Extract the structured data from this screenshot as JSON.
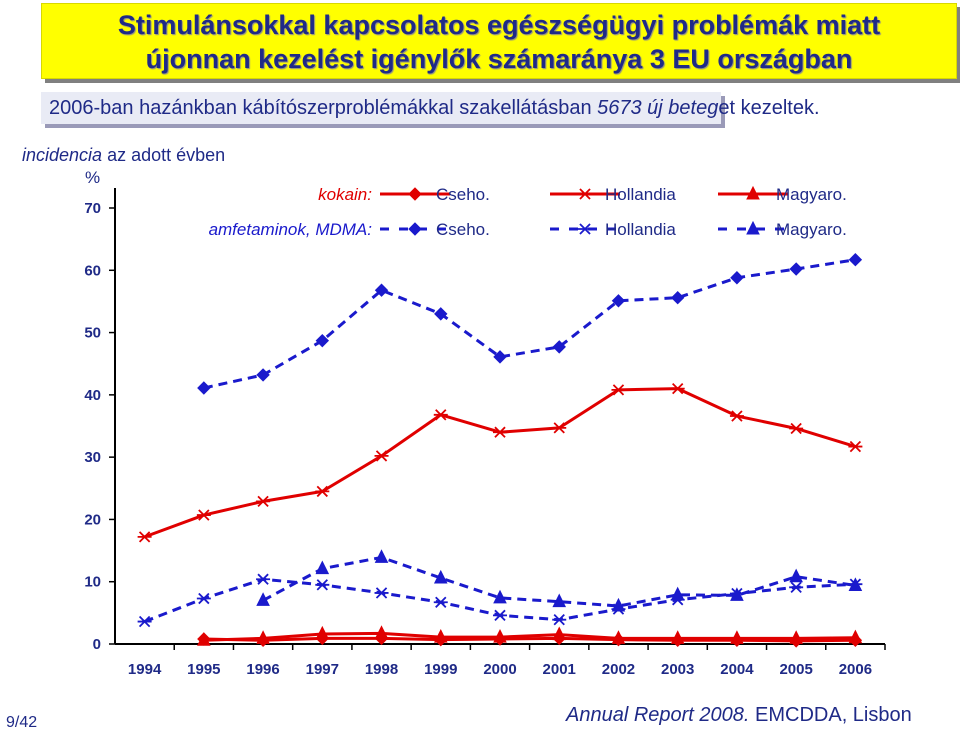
{
  "title_line1": "Stimulánsokkal kapcsolatos egészségügyi problémák miatt",
  "title_line2": "újonnan kezelést igénylők számaránya 3 EU országban",
  "subtitle_pre": "2006-ban hazánkban kábítószerproblémákkal szakellátásban ",
  "subtitle_italic": "5673 új beteg",
  "subtitle_post": "et kezeltek.",
  "incidence_italic": "incidencia",
  "incidence_rest": " az adott évben",
  "ylabel": "%",
  "page_number": "9/42",
  "source_italic": "Annual Report 2008.",
  "source_rest": " EMCDDA, Lisbon",
  "colors": {
    "red": "#e00000",
    "blue": "#1a1acc",
    "text": "#1f2a87"
  },
  "chart_data": {
    "type": "line",
    "x": [
      1994,
      1995,
      1996,
      1997,
      1998,
      1999,
      2000,
      2001,
      2002,
      2003,
      2004,
      2005,
      2006
    ],
    "ylim": [
      0,
      70
    ],
    "yticks": [
      0,
      10,
      20,
      30,
      40,
      50,
      60,
      70
    ],
    "legend_groups": [
      {
        "label": "kokain:",
        "style": "solid",
        "color": "#e00000"
      },
      {
        "label": "amfetaminok, MDMA:",
        "style": "dashed",
        "color": "#1a1acc"
      }
    ],
    "series": [
      {
        "name": "Cseho.",
        "group": 0,
        "marker": "diamond",
        "color": "#e00000",
        "dashed": false,
        "values": [
          null,
          0.8,
          0.6,
          0.9,
          0.9,
          0.7,
          0.8,
          0.9,
          0.7,
          0.6,
          0.6,
          0.5,
          0.6
        ]
      },
      {
        "name": "Hollandia",
        "group": 0,
        "marker": "star",
        "color": "#e00000",
        "dashed": false,
        "values": [
          17.2,
          20.7,
          22.9,
          24.5,
          30.2,
          36.8,
          34.0,
          34.7,
          40.8,
          41.0,
          36.6,
          34.6,
          31.7
        ]
      },
      {
        "name": "Magyaro.",
        "group": 0,
        "marker": "triangle",
        "color": "#e00000",
        "dashed": false,
        "values": [
          null,
          0.6,
          0.9,
          1.6,
          1.7,
          1.1,
          1.1,
          1.5,
          0.9,
          0.9,
          0.9,
          0.9,
          1.0
        ]
      },
      {
        "name": "Cseho.",
        "group": 1,
        "marker": "diamond",
        "color": "#1a1acc",
        "dashed": true,
        "values": [
          null,
          41.1,
          43.2,
          48.7,
          56.8,
          53.0,
          46.1,
          47.7,
          55.1,
          55.6,
          58.8,
          60.2,
          61.7
        ]
      },
      {
        "name": "Hollandia",
        "group": 1,
        "marker": "star",
        "color": "#1a1acc",
        "dashed": true,
        "values": [
          3.6,
          7.3,
          10.4,
          9.5,
          8.2,
          6.7,
          4.6,
          3.9,
          5.6,
          7.1,
          8.1,
          9.1,
          9.6
        ]
      },
      {
        "name": "Magyaro.",
        "group": 1,
        "marker": "triangle",
        "color": "#1a1acc",
        "dashed": true,
        "values": [
          null,
          null,
          7.0,
          12.1,
          13.9,
          10.6,
          7.4,
          6.8,
          6.1,
          7.9,
          7.8,
          10.8,
          9.4
        ]
      }
    ]
  }
}
